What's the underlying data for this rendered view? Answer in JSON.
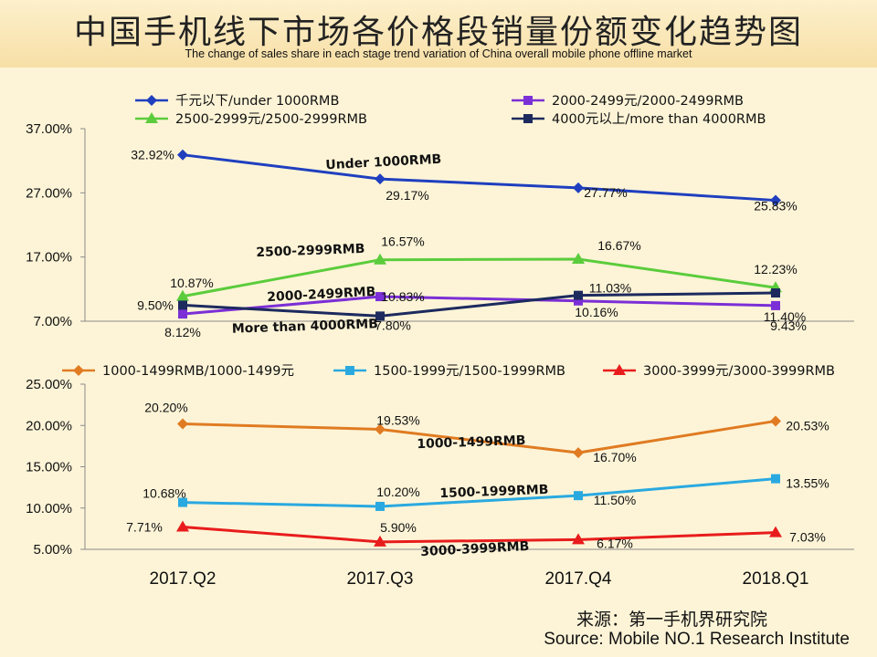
{
  "header": {
    "title_zh": "中国手机线下市场各价格段销量份额变化趋势图",
    "title_en": "The change of sales share in each stage trend variation of China overall mobile phone offline market"
  },
  "source": {
    "zh": "来源：第一手机界研究院",
    "en": "Source: Mobile NO.1 Research Institute"
  },
  "chart_data": [
    {
      "type": "line",
      "id": "top",
      "categories": [
        "2017.Q2",
        "2017.Q3",
        "2017.Q4",
        "2018.Q1"
      ],
      "ylim": [
        7,
        37
      ],
      "yticks": [
        7,
        17,
        27,
        37
      ],
      "ytick_labels": [
        "7.00%",
        "17.00%",
        "27.00%",
        "37.00%"
      ],
      "grid": false,
      "legend_placement": "top",
      "series": [
        {
          "name": "千元以下/under 1000RMB",
          "color": "#1f3fbf",
          "marker": "diamond",
          "values": [
            32.92,
            29.17,
            27.77,
            25.83
          ],
          "labels": [
            "32.92%",
            "29.17%",
            "27.77%",
            "25.83%"
          ],
          "annotation": "Under 1000RMB"
        },
        {
          "name": "2000-2499元/2000-2499RMB",
          "color": "#7b2fd6",
          "marker": "square",
          "values": [
            8.12,
            10.83,
            10.16,
            9.43
          ],
          "labels": [
            "8.12%",
            "10.83%",
            "10.16%",
            "9.43%"
          ],
          "annotation": "2000-2499RMB"
        },
        {
          "name": "2500-2999元/2500-2999RMB",
          "color": "#5bcc3c",
          "marker": "triangle",
          "values": [
            10.87,
            16.57,
            16.67,
            12.23
          ],
          "labels": [
            "10.87%",
            "16.57%",
            "16.67%",
            "12.23%"
          ],
          "annotation": "2500-2999RMB"
        },
        {
          "name": "4000元以上/more than 4000RMB",
          "color": "#1c2a5e",
          "marker": "square",
          "values": [
            9.5,
            7.8,
            11.03,
            11.4
          ],
          "labels": [
            "9.50%",
            "7.80%",
            "11.03%",
            "11.40%"
          ],
          "annotation": "More than 4000RMB"
        }
      ]
    },
    {
      "type": "line",
      "id": "bottom",
      "categories": [
        "2017.Q2",
        "2017.Q3",
        "2017.Q4",
        "2018.Q1"
      ],
      "ylim": [
        5,
        25
      ],
      "yticks": [
        5,
        10,
        15,
        20,
        25
      ],
      "ytick_labels": [
        "5.00%",
        "10.00%",
        "15.00%",
        "20.00%",
        "25.00%"
      ],
      "grid": false,
      "legend_placement": "top",
      "series": [
        {
          "name": "1000-1499RMB/1000-1499元",
          "color": "#e07b22",
          "marker": "diamond",
          "values": [
            20.2,
            19.53,
            16.7,
            20.53
          ],
          "labels": [
            "20.20%",
            "19.53%",
            "16.70%",
            "20.53%"
          ],
          "annotation": "1000-1499RMB"
        },
        {
          "name": "1500-1999元/1500-1999RMB",
          "color": "#2aa9e0",
          "marker": "square",
          "values": [
            10.68,
            10.2,
            11.5,
            13.55
          ],
          "labels": [
            "10.68%",
            "10.20%",
            "11.50%",
            "13.55%"
          ],
          "annotation": "1500-1999RMB"
        },
        {
          "name": "3000-3999元/3000-3999RMB",
          "color": "#e81c1c",
          "marker": "triangle",
          "values": [
            7.71,
            5.9,
            6.17,
            7.03
          ],
          "labels": [
            "7.71%",
            "5.90%",
            "6.17%",
            "7.03%"
          ],
          "annotation": "3000-3999RMB"
        }
      ]
    }
  ]
}
